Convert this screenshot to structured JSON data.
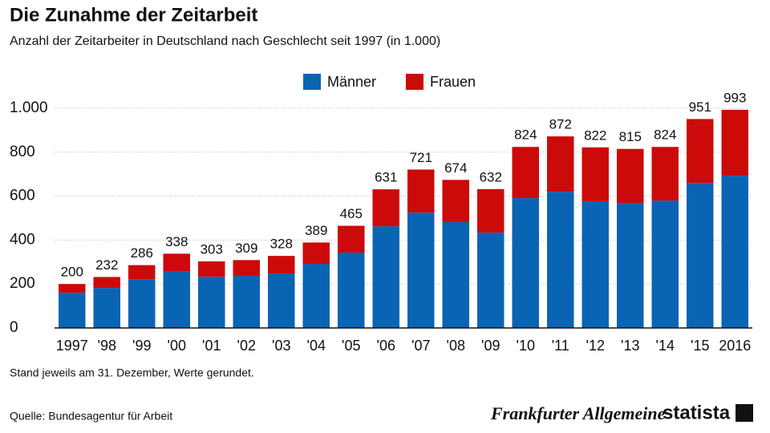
{
  "chart_data": {
    "type": "stacked_bar",
    "title": "Die Zunahme der Zeitarbeit",
    "subtitle": "Anzahl der Zeitarbeiter in Deutschland nach Geschlecht seit 1997 (in 1.000)",
    "categories": [
      "1997",
      "'98",
      "'99",
      "'00",
      "'01",
      "'02",
      "'03",
      "'04",
      "'05",
      "'06",
      "'07",
      "'08",
      "'09",
      "'10",
      "'11",
      "'12",
      "'13",
      "'14",
      "'15",
      "2016"
    ],
    "series": [
      {
        "name": "Männer",
        "color": "#0a64b4",
        "values": [
          160,
          182,
          222,
          259,
          233,
          237,
          248,
          292,
          343,
          463,
          525,
          482,
          434,
          591,
          620,
          577,
          569,
          580,
          660,
          693
        ]
      },
      {
        "name": "Frauen",
        "color": "#cc0a0a",
        "values": [
          40,
          50,
          64,
          79,
          70,
          72,
          80,
          97,
          122,
          168,
          196,
          192,
          198,
          233,
          252,
          245,
          246,
          244,
          291,
          300
        ]
      }
    ],
    "totals": [
      200,
      232,
      286,
      338,
      303,
      309,
      328,
      389,
      465,
      631,
      721,
      674,
      632,
      824,
      872,
      822,
      815,
      824,
      951,
      993
    ],
    "ylim": [
      0,
      1000
    ],
    "yticks": [
      0,
      200,
      400,
      600,
      800,
      {
        "value": 1000,
        "label": "1.000"
      }
    ],
    "grid": true,
    "note": "Stand jeweils am 31. Dezember, Werte gerundet.",
    "source": "Quelle: Bundesagentur für Arbeit",
    "brand_left": "Frankfurter Allgemeine",
    "brand_right": "statista"
  }
}
